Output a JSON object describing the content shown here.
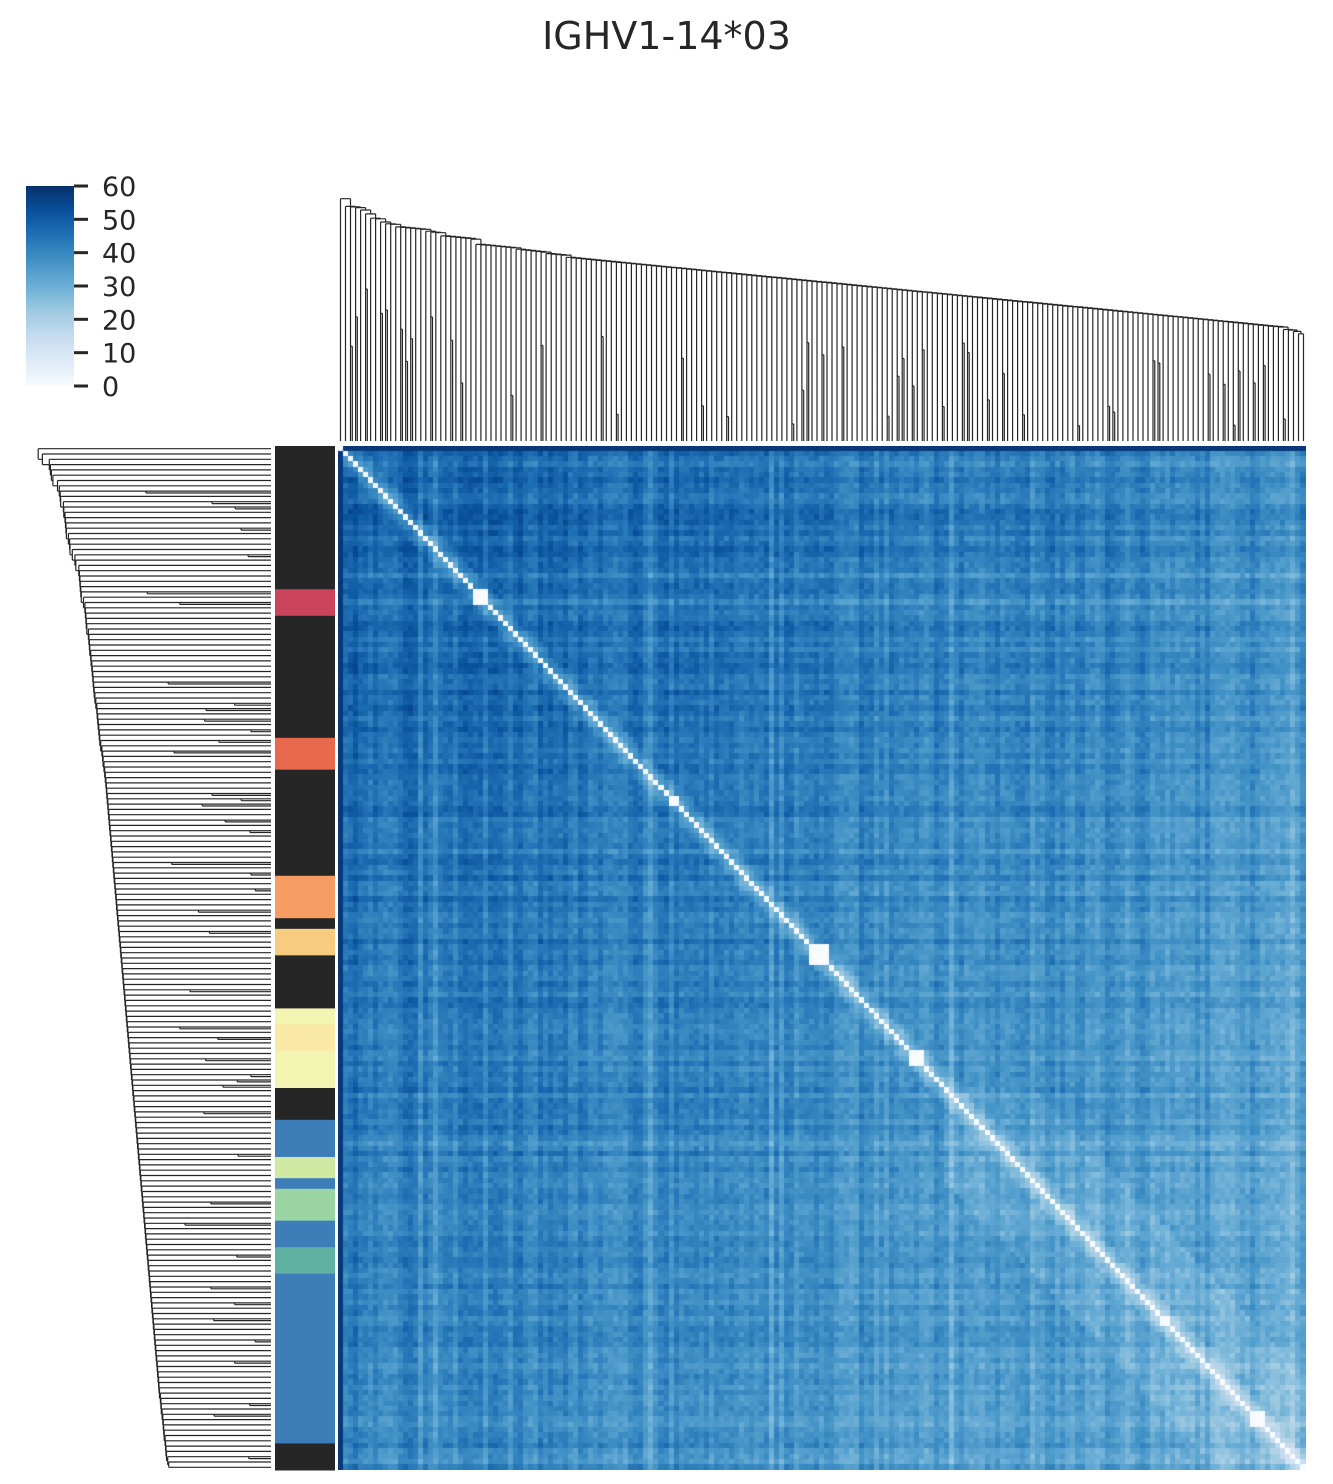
{
  "chart_data": {
    "type": "heatmap",
    "title": "IGHV1-14*03",
    "subtype": "clustermap",
    "n_rows": 193,
    "n_cols": 193,
    "colormap": "Blues",
    "colorbar": {
      "min": 0,
      "max": 60,
      "ticks": [
        "0",
        "10",
        "20",
        "30",
        "40",
        "50",
        "60"
      ],
      "colors": [
        "#f7fbff",
        "#deebf7",
        "#c6dbef",
        "#9ecae1",
        "#6baed6",
        "#4292c6",
        "#2171b5",
        "#08519c",
        "#08306b"
      ]
    },
    "diagonal_value": 0,
    "value_range": [
      0,
      62
    ],
    "row_dendrogram": true,
    "col_dendrogram": true,
    "row_color_groups": [
      {
        "color": "#262626",
        "start": 0,
        "end": 27
      },
      {
        "color": "#c9445a",
        "start": 27,
        "end": 32
      },
      {
        "color": "#262626",
        "start": 32,
        "end": 55
      },
      {
        "color": "#e8694e",
        "start": 55,
        "end": 61
      },
      {
        "color": "#262626",
        "start": 61,
        "end": 81
      },
      {
        "color": "#f59d63",
        "start": 81,
        "end": 89
      },
      {
        "color": "#262626",
        "start": 89,
        "end": 91
      },
      {
        "color": "#f8cc80",
        "start": 91,
        "end": 96
      },
      {
        "color": "#262626",
        "start": 96,
        "end": 106
      },
      {
        "color": "#f2f4b2",
        "start": 106,
        "end": 109
      },
      {
        "color": "#f9e8a6",
        "start": 109,
        "end": 114
      },
      {
        "color": "#f2f4b2",
        "start": 114,
        "end": 121
      },
      {
        "color": "#262626",
        "start": 121,
        "end": 127
      },
      {
        "color": "#3d7db8",
        "start": 127,
        "end": 134
      },
      {
        "color": "#d0e9a2",
        "start": 134,
        "end": 138
      },
      {
        "color": "#3d7db8",
        "start": 138,
        "end": 140
      },
      {
        "color": "#9bd5a4",
        "start": 140,
        "end": 146
      },
      {
        "color": "#3d7db8",
        "start": 146,
        "end": 151
      },
      {
        "color": "#5fb1a2",
        "start": 151,
        "end": 156
      },
      {
        "color": "#3d7db8",
        "start": 156,
        "end": 188
      },
      {
        "color": "#262626",
        "start": 188,
        "end": 193
      }
    ]
  },
  "colors": {
    "text": "#262626",
    "dendrogram_line": "#262626",
    "background": "#ffffff"
  }
}
